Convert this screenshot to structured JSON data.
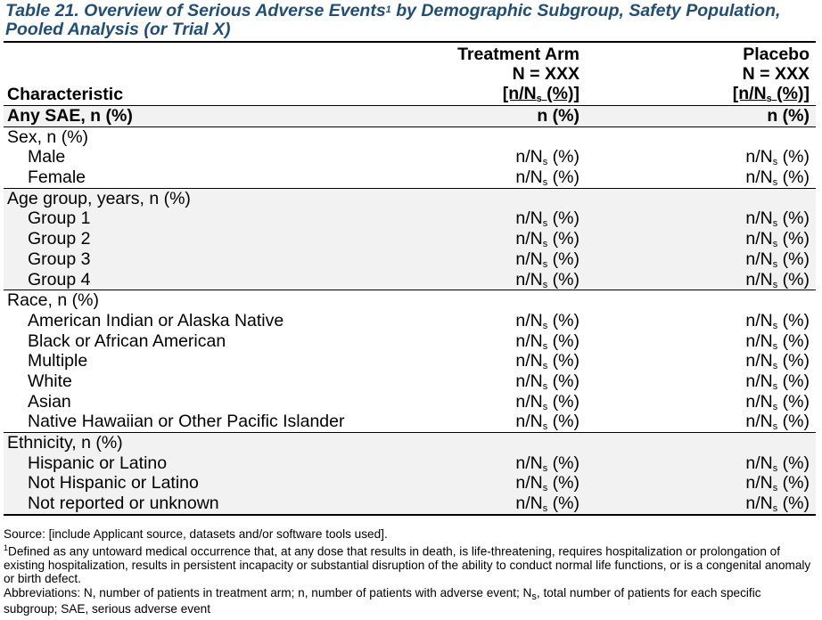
{
  "title_pre": "Table 21. Overview of Serious Adverse Events",
  "title_sup": "1",
  "title_post": " by Demographic Subgroup, Safety Population, Pooled Analysis (or Trial X)",
  "header": {
    "characteristic": "Characteristic",
    "col1": {
      "name": "Treatment Arm",
      "n": "N = XXX",
      "unit_pre": "[n/N",
      "unit_sub": "s",
      "unit_post": " (%)]"
    },
    "col2": {
      "name": "Placebo",
      "n": "N = XXX",
      "unit_pre": "[n/N",
      "unit_sub": "s",
      "unit_post": " (%)]"
    }
  },
  "any_sae": {
    "label": "Any SAE, n (%)",
    "v1": "n (%)",
    "v2": "n (%)"
  },
  "cell_pre": "n/N",
  "cell_sub": "s",
  "cell_post": " (%)",
  "groups": [
    {
      "label": "Sex, n (%)",
      "items": [
        "Male",
        "Female"
      ]
    },
    {
      "label": "Age group, years, n (%)",
      "items": [
        "Group 1",
        "Group 2",
        "Group 3",
        "Group 4"
      ]
    },
    {
      "label": "Race, n (%)",
      "items": [
        "American Indian or Alaska Native",
        "Black or African American",
        "Multiple",
        "White",
        "Asian",
        "Native Hawaiian or Other Pacific Islander"
      ]
    },
    {
      "label": "Ethnicity, n (%)",
      "items": [
        "Hispanic or Latino",
        "Not Hispanic or Latino",
        "Not reported or unknown"
      ]
    }
  ],
  "footnotes": {
    "source": "Source: [include Applicant source, datasets and/or software tools used].",
    "def_sup": "1",
    "definition": "Defined as any untoward medical occurrence that, at any dose that results in death, is life-threatening, requires hospitalization or prolongation of existing hospitalization, results in persistent incapacity or substantial disruption of the ability to conduct normal life functions, or is a congenital anomaly or birth defect.",
    "abbr_pre": "Abbreviations: N, number of patients in treatment arm; n, number of patients with adverse event; N",
    "abbr_sub": "s",
    "abbr_post": ", total number of patients for each specific subgroup; SAE, serious adverse event"
  }
}
